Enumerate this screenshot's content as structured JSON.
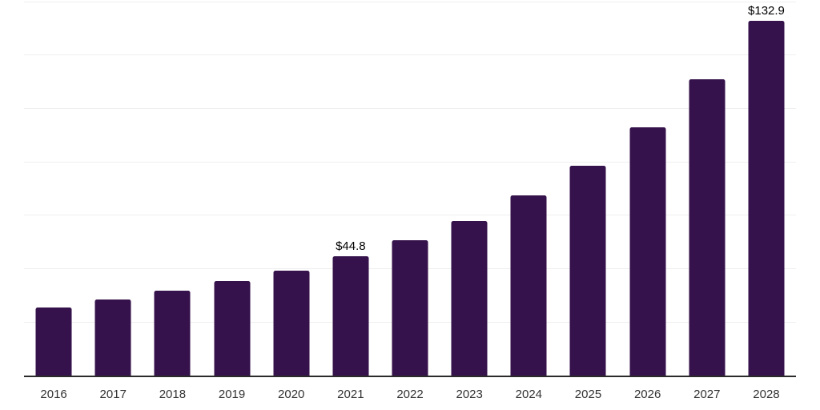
{
  "chart_data": {
    "type": "bar",
    "categories": [
      "2016",
      "2017",
      "2018",
      "2019",
      "2020",
      "2021",
      "2022",
      "2023",
      "2024",
      "2025",
      "2026",
      "2027",
      "2028"
    ],
    "values": [
      25.5,
      28.5,
      31.9,
      35.4,
      39.3,
      44.8,
      50.7,
      57.9,
      67.5,
      78.6,
      93.0,
      111.0,
      132.9
    ],
    "data_labels": {
      "2021": "$44.8",
      "2028": "$132.9"
    },
    "ylim": [
      0,
      140
    ],
    "grid_step": 20,
    "grid": true,
    "legend_position": "none",
    "y_tick_labels_visible": false,
    "colors": {
      "bar": "#35124B",
      "gridline": "#EFEFEF",
      "axis_line": "#2B2B2B",
      "x_tick_label": "#333333",
      "value_label": "#000000",
      "background": "#FFFFFF"
    }
  }
}
